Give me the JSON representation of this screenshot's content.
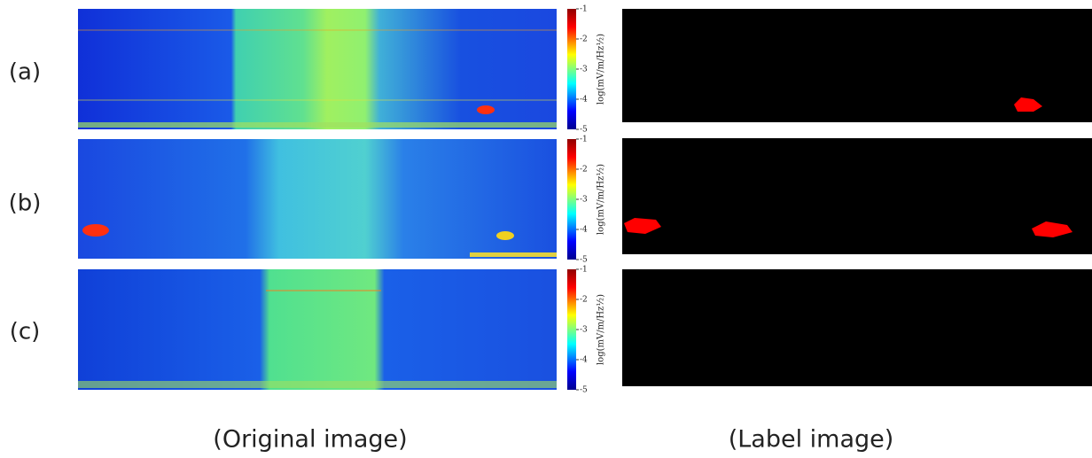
{
  "panels": [
    {
      "label": "(a)",
      "colorbar": {
        "label": "log(mV/m/Hz½)",
        "lim": [
          -5,
          -1
        ],
        "ticks": [
          -1,
          -2,
          -3,
          -4,
          -5
        ]
      }
    },
    {
      "label": "(b)",
      "colorbar": {
        "label": "log(mV/m/Hz½)",
        "lim": [
          -5,
          -1
        ],
        "ticks": [
          -1,
          -2,
          -3,
          -4,
          -5
        ]
      }
    },
    {
      "label": "(c)",
      "colorbar": {
        "label": "log(mV/m/Hz½)",
        "lim": [
          -5,
          -1
        ],
        "ticks": [
          -1,
          -2,
          -3,
          -4,
          -5
        ]
      }
    }
  ],
  "captions": {
    "original": "(Original image)",
    "label": "(Label image)"
  }
}
